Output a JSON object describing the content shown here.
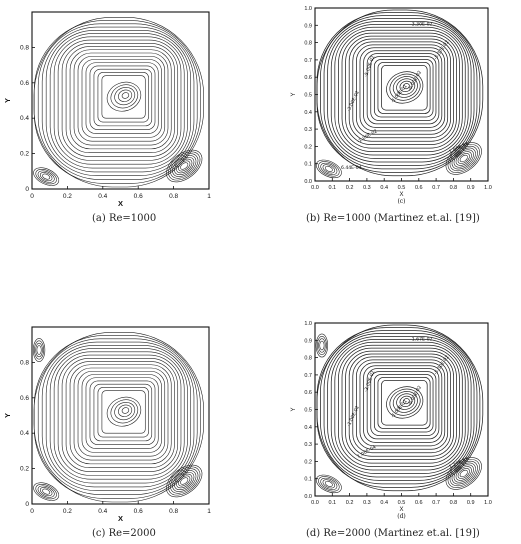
{
  "figure": {
    "panels": [
      {
        "id": "a",
        "caption": "(a) Re=1000",
        "style": "plain",
        "xlabel": "X",
        "ylabel": "Y",
        "sublabel": "",
        "xticks": [
          "0",
          "0.2",
          "0.4",
          "0.6",
          "0.8",
          "1"
        ],
        "yticks": [
          "0",
          "0.2",
          "0.4",
          "0.6",
          "0.8"
        ],
        "contour_labels": []
      },
      {
        "id": "b",
        "caption": "(b) Re=1000 (Martinez et.al. [19])",
        "style": "labeled",
        "xlabel": "X",
        "ylabel": "Y",
        "sublabel": "(c)",
        "xticks": [
          "0.0",
          "0.1",
          "0.2",
          "0.3",
          "0.4",
          "0.5",
          "0.6",
          "0.7",
          "0.8",
          "0.9",
          "1.0"
        ],
        "yticks": [
          "0.0",
          "0.1",
          "0.2",
          "0.3",
          "0.4",
          "0.5",
          "0.6",
          "0.7",
          "0.8",
          "0.9",
          "1.0"
        ],
        "contour_labels": [
          "-3.30E-02",
          "-5.37E-02",
          "-6.00E-02",
          "-1.00E-01",
          "-5.00E-02",
          "-3.00E-02",
          "-1.00E-02",
          "1.00E-04",
          "6.44E-04"
        ]
      },
      {
        "id": "c",
        "caption": "(c) Re=2000",
        "style": "plain",
        "xlabel": "X",
        "ylabel": "Y",
        "sublabel": "",
        "xticks": [
          "0",
          "0.2",
          "0.4",
          "0.6",
          "0.8",
          "1"
        ],
        "yticks": [
          "0",
          "0.2",
          "0.4",
          "0.6",
          "0.8"
        ],
        "contour_labels": []
      },
      {
        "id": "d",
        "caption": "(d) Re=2000 (Martinez et.al. [19])",
        "style": "labeled",
        "xlabel": "X",
        "ylabel": "Y",
        "sublabel": "(d)",
        "xticks": [
          "0.0",
          "0.1",
          "0.2",
          "0.3",
          "0.4",
          "0.5",
          "0.6",
          "0.7",
          "0.8",
          "0.9",
          "1.0"
        ],
        "yticks": [
          "0.0",
          "0.1",
          "0.2",
          "0.3",
          "0.4",
          "0.5",
          "0.6",
          "0.7",
          "0.8",
          "0.9",
          "1.0"
        ],
        "contour_labels": [
          "-1.67E-02",
          "-5.30E-02",
          "-6.00E-02",
          "-1.00E-01",
          "-3.00E-02",
          "-1.00E-02",
          "1.00E-04",
          "1.21E-03"
        ]
      }
    ]
  }
}
